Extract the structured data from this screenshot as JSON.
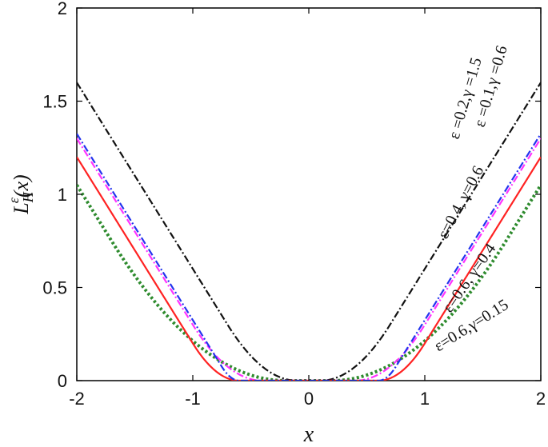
{
  "chart_data": {
    "type": "line",
    "xlabel": "x",
    "ylabel": "L_H^ε(x)",
    "ylabel_parts": {
      "base": "L",
      "sup": "ε",
      "sub": "H",
      "arg": "(x)"
    },
    "xlim": [
      -2,
      2
    ],
    "ylim": [
      0,
      2
    ],
    "x_ticks": [
      "-2",
      "-1",
      "0",
      "1",
      "2"
    ],
    "y_ticks": [
      "0",
      "0.5",
      "1",
      "1.5",
      "2"
    ],
    "grid": false,
    "series": [
      {
        "name": "ε =0.2,γ =1.5",
        "color": "#2e8b2e",
        "style": "dotted",
        "epsilon": 0.2,
        "gamma": 1.5
      },
      {
        "name": "ε =0.1,γ =0.6",
        "color": "#111111",
        "style": "dashdot",
        "epsilon": 0.1,
        "gamma": 0.6
      },
      {
        "name": "ε=0.4, γ=0.6",
        "color": "#ff33ff",
        "style": "dashdot",
        "epsilon": 0.4,
        "gamma": 0.6
      },
      {
        "name": "ε=0.6, γ=0.4",
        "color": "#ff2222",
        "style": "solid",
        "epsilon": 0.6,
        "gamma": 0.4
      },
      {
        "name": "ε=0.6,γ=0.15",
        "color": "#2233ee",
        "style": "dashdot",
        "epsilon": 0.6,
        "gamma": 0.15
      }
    ]
  }
}
